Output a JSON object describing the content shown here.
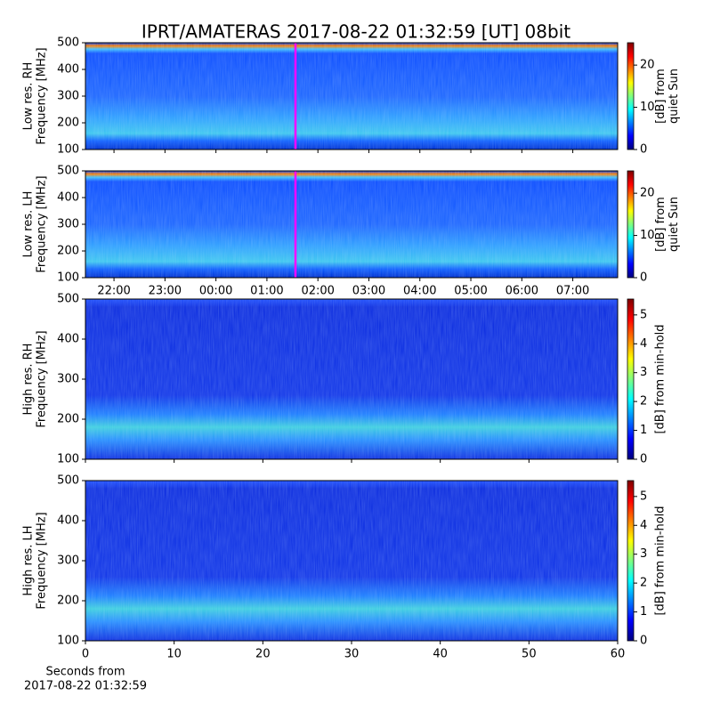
{
  "chart_data": [
    {
      "type": "heatmap",
      "title": "IPRT/AMATERAS 2017-08-22 01:32:59 [UT]   08bit",
      "ylabel": [
        "Low res. RH",
        "Frequency [MHz]"
      ],
      "ylim": [
        100,
        500
      ],
      "yticks": [
        100,
        200,
        300,
        400,
        500
      ],
      "xlim": [
        21.44,
        31.88
      ],
      "clabel": [
        "[dB] from",
        "quiet Sun"
      ],
      "clim": [
        0,
        25.3
      ],
      "cticks": [
        0,
        10,
        20
      ]
    },
    {
      "type": "heatmap",
      "ylabel": [
        "Low res. LH",
        "Frequency [MHz]"
      ],
      "ylim": [
        100,
        500
      ],
      "yticks": [
        100,
        200,
        300,
        400,
        500
      ],
      "xlim": [
        21.44,
        31.88
      ],
      "xticks": [
        {
          "value": 22,
          "label": "22:00"
        },
        {
          "value": 23,
          "label": "23:00"
        },
        {
          "value": 24,
          "label": "00:00"
        },
        {
          "value": 25,
          "label": "01:00"
        },
        {
          "value": 26,
          "label": "02:00"
        },
        {
          "value": 27,
          "label": "03:00"
        },
        {
          "value": 28,
          "label": "04:00"
        },
        {
          "value": 29,
          "label": "05:00"
        },
        {
          "value": 30,
          "label": "06:00"
        },
        {
          "value": 31,
          "label": "07:00"
        }
      ],
      "clabel": [
        "[dB] from",
        "quiet Sun"
      ],
      "clim": [
        0,
        25.3
      ],
      "cticks": [
        0,
        10,
        20
      ]
    },
    {
      "type": "heatmap",
      "ylabel": [
        "High res. RH",
        "Frequency [MHz]"
      ],
      "ylim": [
        100,
        500
      ],
      "yticks": [
        100,
        200,
        300,
        400,
        500
      ],
      "xlim": [
        0,
        60
      ],
      "clabel": [
        "[dB] from min-hold"
      ],
      "clim": [
        0,
        5.55
      ],
      "cticks": [
        0,
        1,
        2,
        3,
        4,
        5
      ]
    },
    {
      "type": "heatmap",
      "ylabel": [
        "High res. LH",
        "Frequency [MHz]"
      ],
      "ylim": [
        100,
        500
      ],
      "yticks": [
        100,
        200,
        300,
        400,
        500
      ],
      "xlim": [
        0,
        60
      ],
      "xticks": [
        0,
        10,
        20,
        30,
        40,
        50,
        60
      ],
      "xlabel": [
        "Seconds from",
        "2017-08-22 01:32:59"
      ],
      "clabel": [
        "[dB] from min-hold"
      ],
      "clim": [
        0,
        5.55
      ],
      "cticks": [
        0,
        1,
        2,
        3,
        4,
        5
      ]
    }
  ]
}
